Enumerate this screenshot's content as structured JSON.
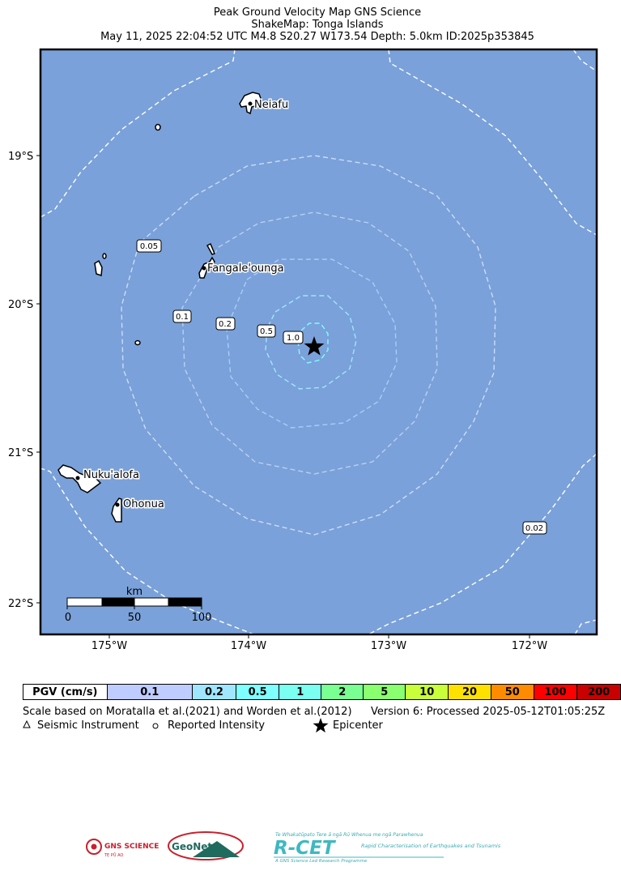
{
  "header": {
    "line1": "Peak Ground Velocity Map GNS Science",
    "line2": "ShakeMap: Tonga Islands",
    "line3": "May 11, 2025 22:04:52 UTC M4.8 S20.27 W173.54 Depth: 5.0km ID:2025p353845"
  },
  "map": {
    "lat_labels": [
      "19°S",
      "20°S",
      "21°S",
      "22°S"
    ],
    "lon_labels": [
      "175°W",
      "174°W",
      "173°W",
      "172°W"
    ],
    "places": [
      "Neiafu",
      "Fangale'ounga",
      "Nuku'alofa",
      "Ohonua"
    ],
    "contours": [
      "0.05",
      "0.1",
      "0.2",
      "0.5",
      "1.0",
      "0.02"
    ],
    "scalebar": {
      "unit": "km",
      "ticks": [
        "0",
        "50",
        "100"
      ]
    },
    "colors": {
      "ocean": "#7aa1d9",
      "land": "#ffffff",
      "epicenter": "#000000"
    }
  },
  "legend": {
    "label": "PGV (cm/s)",
    "bins": [
      {
        "value": "0.1",
        "color": "#bfccff"
      },
      {
        "value": "0.2",
        "color": "#a0e6ff"
      },
      {
        "value": "0.5",
        "color": "#80ffff"
      },
      {
        "value": "1",
        "color": "#7afff0"
      },
      {
        "value": "2",
        "color": "#7aff93"
      },
      {
        "value": "5",
        "color": "#8aff70"
      },
      {
        "value": "10",
        "color": "#c8ff3a"
      },
      {
        "value": "20",
        "color": "#ffe100"
      },
      {
        "value": "50",
        "color": "#ff8c00"
      },
      {
        "value": "100",
        "color": "#ff0000"
      },
      {
        "value": "200",
        "color": "#c80000"
      }
    ],
    "scale_note": "Scale based on Moratalla et al.(2021) and Worden et al.(2012)",
    "version_note": "Version 6: Processed 2025-05-12T01:05:25Z",
    "symbols": {
      "seismic": "Seismic Instrument",
      "intensity": "Reported Intensity",
      "epicenter": "Epicenter"
    }
  },
  "logos": {
    "gns": "GNS SCIENCE",
    "gns_sub": "TE PŪ AO",
    "geonet": "GeoNet",
    "rcet_tagline": "Te Whakatūpato Tere ā ngā Rū Whenua me ngā Parawhenua",
    "rcet": "R-CET",
    "rcet_side": "Rapid Characterisation of Earthquakes and Tsunamis",
    "rcet_foot": "A GNS Science Led Research Programme"
  }
}
